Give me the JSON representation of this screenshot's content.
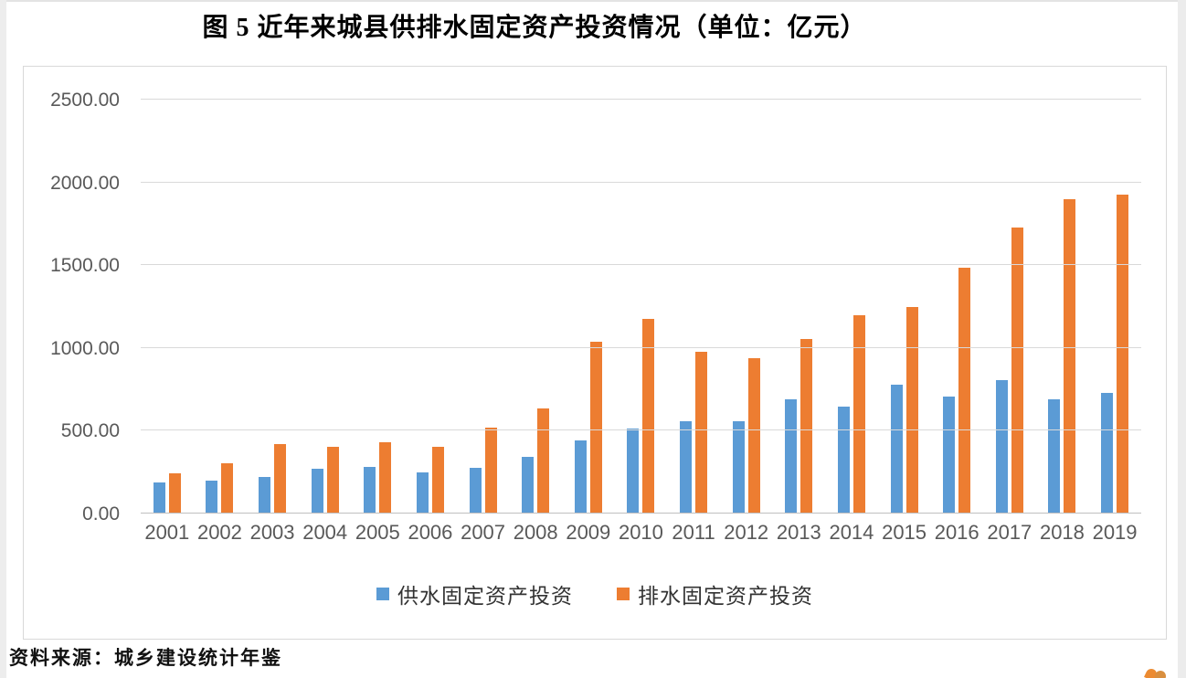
{
  "page": {
    "title": "图 5  近年来城县供排水固定资产投资情况（单位：亿元）",
    "source": "资料来源：城乡建设统计年鉴"
  },
  "chart_data": {
    "type": "bar",
    "title": "图 5  近年来城县供排水固定资产投资情况（单位：亿元）",
    "unit": "亿元",
    "categories": [
      "2001",
      "2002",
      "2003",
      "2004",
      "2005",
      "2006",
      "2007",
      "2008",
      "2009",
      "2010",
      "2011",
      "2012",
      "2013",
      "2014",
      "2015",
      "2016",
      "2017",
      "2018",
      "2019"
    ],
    "series": [
      {
        "name": "供水固定资产投资",
        "color": "#5B9BD5",
        "values": [
          190,
          200,
          219,
          270,
          281,
          251,
          278,
          345,
          444,
          512,
          560,
          556,
          691,
          647,
          777,
          706,
          807,
          688,
          727
        ]
      },
      {
        "name": "排水固定资产投资",
        "color": "#ED7D31",
        "values": [
          242,
          306,
          420,
          405,
          430,
          404,
          517,
          636,
          1036,
          1177,
          975,
          936,
          1055,
          1196,
          1249,
          1486,
          1728,
          1898,
          1926
        ]
      }
    ],
    "ylim": [
      0,
      2500
    ],
    "ytick_interval": 500,
    "ytick_labels": [
      "0.00",
      "500.00",
      "1000.00",
      "1500.00",
      "2000.00",
      "2500.00"
    ],
    "grid": true,
    "legend_position": "bottom",
    "source": "资料来源：城乡建设统计年鉴"
  },
  "colors": {
    "series_water_supply": "#5B9BD5",
    "series_drainage": "#ED7D31",
    "gridline": "#d9d9d9",
    "axis_text": "#595959",
    "frame_border": "#d9d9d9"
  }
}
